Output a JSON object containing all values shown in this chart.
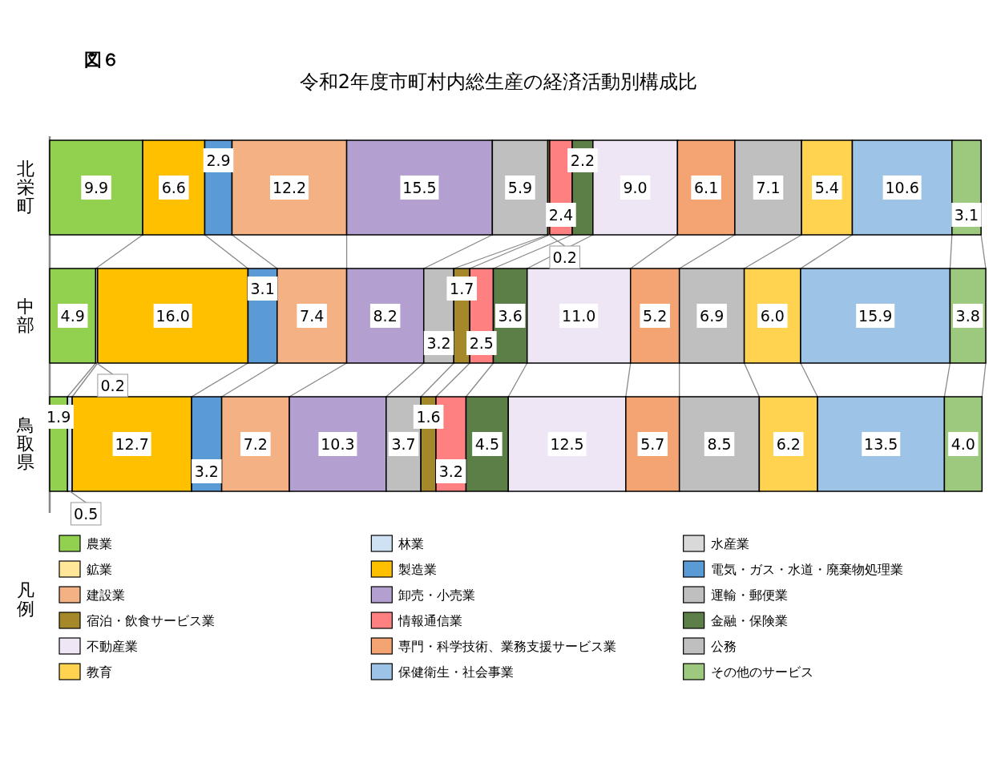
{
  "chart_data": {
    "type": "bar",
    "orientation": "horizontal",
    "stacked": true,
    "legend": "bottom",
    "legend_title": "凡例",
    "title": "令和2年度市町村内総生産の経済活動別構成比",
    "annotations": [
      "図６"
    ],
    "categories": [
      "北栄町",
      "中部",
      "鳥取県"
    ],
    "series": [
      {
        "name": "農業",
        "color": "#92d050",
        "values": [
          9.9,
          4.9,
          1.9
        ],
        "value_labels": [
          "9.9",
          "4.9",
          "1.9"
        ]
      },
      {
        "name": "林業",
        "color": "#cfe2f3",
        "values": [
          null,
          0.2,
          0.5
        ],
        "value_labels": [
          null,
          "0.2",
          "0.5"
        ]
      },
      {
        "name": "水産業",
        "color": "#d9d9d9",
        "values": [
          null,
          null,
          null
        ],
        "value_labels": [
          null,
          null,
          null
        ]
      },
      {
        "name": "鉱業",
        "color": "#ffe699",
        "values": [
          null,
          null,
          null
        ],
        "value_labels": [
          null,
          null,
          null
        ]
      },
      {
        "name": "製造業",
        "color": "#ffc000",
        "values": [
          6.6,
          16.0,
          12.7
        ],
        "value_labels": [
          "6.6",
          "16.0",
          "12.7"
        ]
      },
      {
        "name": "電気・ガス・水道・廃棄物処理業",
        "color": "#5b9bd5",
        "values": [
          2.9,
          3.1,
          3.2
        ],
        "value_labels": [
          "2.9",
          "3.1",
          "3.2"
        ]
      },
      {
        "name": "建設業",
        "color": "#f4b183",
        "values": [
          12.2,
          7.4,
          7.2
        ],
        "value_labels": [
          "12.2",
          "7.4",
          "7.2"
        ]
      },
      {
        "name": "卸売・小売業",
        "color": "#b4a0d0",
        "values": [
          15.5,
          8.2,
          10.3
        ],
        "value_labels": [
          "15.5",
          "8.2",
          "10.3"
        ]
      },
      {
        "name": "運輸・郵便業",
        "color": "#bfbfbf",
        "values": [
          5.9,
          3.2,
          3.7
        ],
        "value_labels": [
          "5.9",
          "3.2",
          "3.7"
        ]
      },
      {
        "name": "宿泊・飲食サービス業",
        "color": "#a5882a",
        "values": [
          0.2,
          1.7,
          1.6
        ],
        "value_labels": [
          "0.2",
          "1.7",
          "1.6"
        ]
      },
      {
        "name": "情報通信業",
        "color": "#ff8080",
        "values": [
          2.4,
          2.5,
          3.2
        ],
        "value_labels": [
          "2.4",
          "2.5",
          "3.2"
        ]
      },
      {
        "name": "金融・保険業",
        "color": "#5b7f47",
        "values": [
          2.2,
          3.6,
          4.5
        ],
        "value_labels": [
          "2.2",
          "3.6",
          "4.5"
        ]
      },
      {
        "name": "不動産業",
        "color": "#efe6f5",
        "values": [
          9.0,
          11.0,
          12.5
        ],
        "value_labels": [
          "9.0",
          "11.0",
          "12.5"
        ]
      },
      {
        "name": "専門・科学技術、業務支援サービス業",
        "color": "#f4a373",
        "values": [
          6.1,
          5.2,
          5.7
        ],
        "value_labels": [
          "6.1",
          "5.2",
          "5.7"
        ]
      },
      {
        "name": "公務",
        "color": "#bfbfbf",
        "values": [
          7.1,
          6.9,
          8.5
        ],
        "value_labels": [
          "7.1",
          "6.9",
          "8.5"
        ]
      },
      {
        "name": "教育",
        "color": "#ffd34f",
        "values": [
          5.4,
          6.0,
          6.2
        ],
        "value_labels": [
          "5.4",
          "6.0",
          "6.2"
        ]
      },
      {
        "name": "保健衛生・社会事業",
        "color": "#9dc3e6",
        "values": [
          10.6,
          15.9,
          13.5
        ],
        "value_labels": [
          "10.6",
          "15.9",
          "13.5"
        ]
      },
      {
        "name": "その他のサービス",
        "color": "#9dc97e",
        "values": [
          3.1,
          3.8,
          4.0
        ],
        "value_labels": [
          "3.1",
          "3.8",
          "4.0"
        ]
      }
    ]
  }
}
